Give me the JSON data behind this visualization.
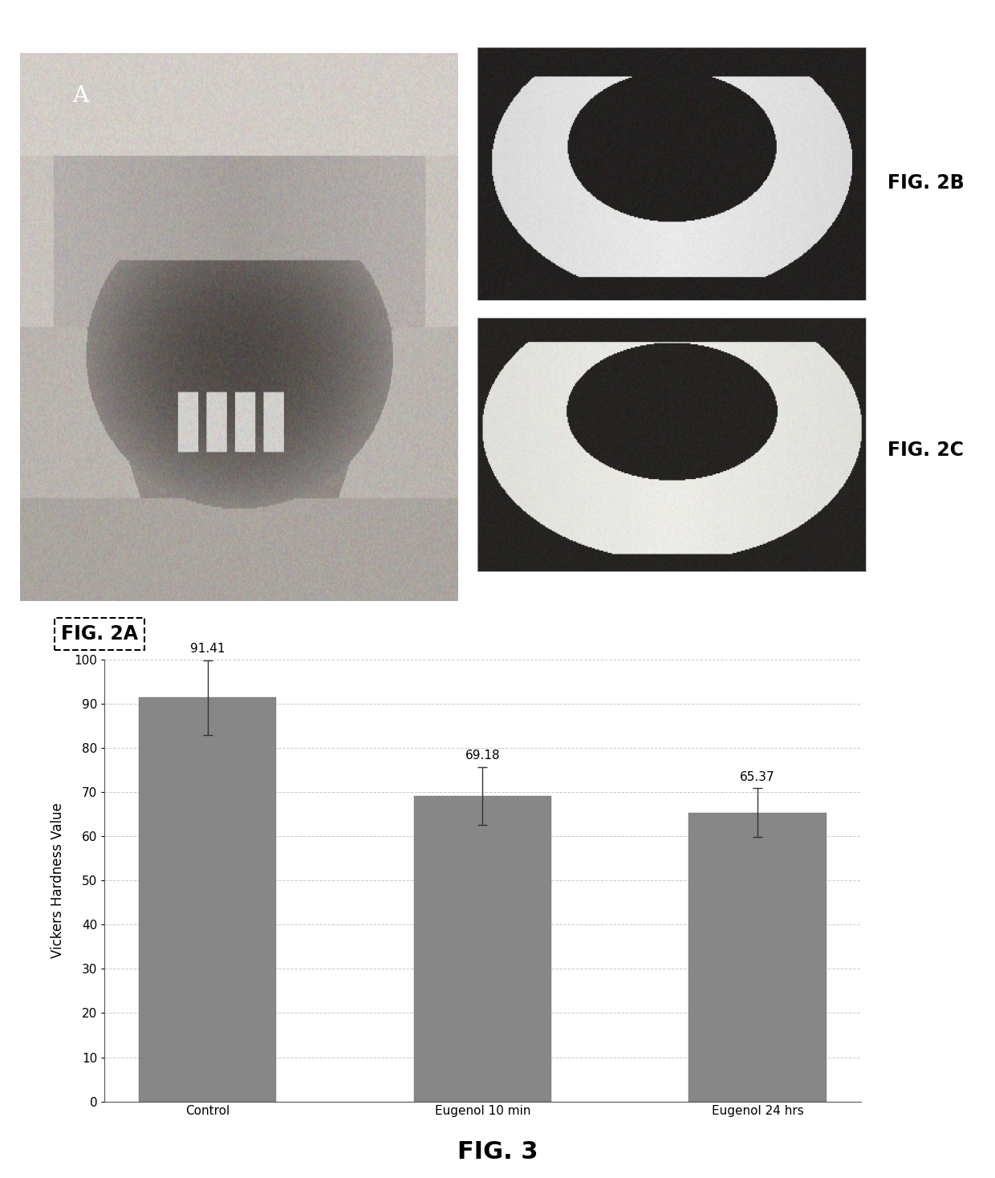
{
  "bar_values": [
    91.41,
    69.18,
    65.37
  ],
  "bar_errors": [
    8.5,
    6.5,
    5.5
  ],
  "bar_labels": [
    "Control",
    "Eugenol 10 min",
    "Eugenol 24 hrs"
  ],
  "bar_color": "#878787",
  "ylabel": "Vickers Hardness Value",
  "ylim": [
    0,
    100
  ],
  "yticks": [
    0,
    10,
    20,
    30,
    40,
    50,
    60,
    70,
    80,
    90,
    100
  ],
  "fig3_label": "FIG. 3",
  "fig2a_label": "FIG. 2A",
  "fig2b_label": "FIG. 2B",
  "fig2c_label": "FIG. 2C",
  "label_A": "A",
  "background_color": "#ffffff",
  "grid_color": "#bbbbbb",
  "grid_alpha": 0.8,
  "annotation_fontsize": 11,
  "axis_fontsize": 12,
  "tick_fontsize": 11,
  "fig3_fontsize": 22,
  "fig_label_fontsize": 17,
  "bar_width": 0.5
}
